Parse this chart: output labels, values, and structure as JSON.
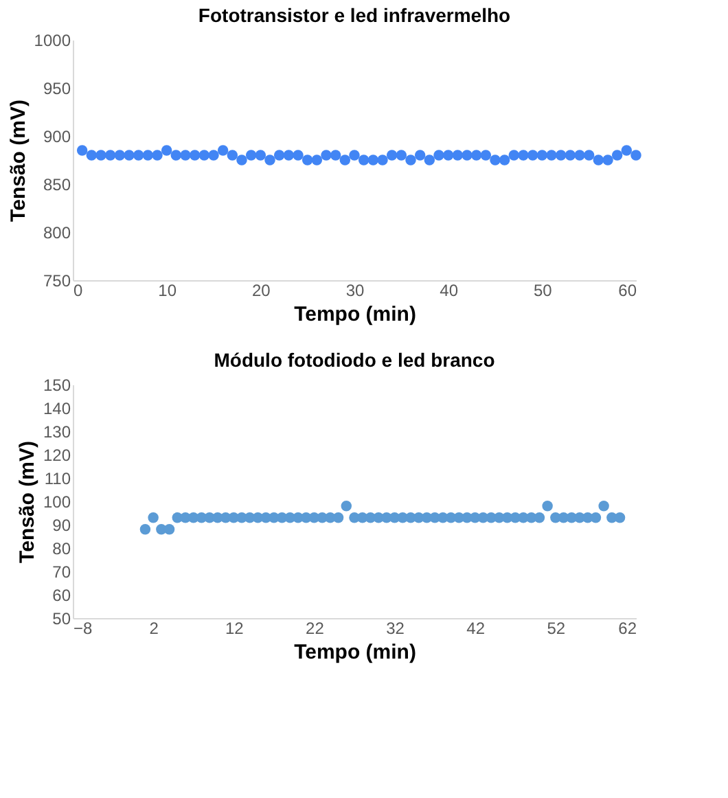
{
  "chart_data": [
    {
      "type": "scatter",
      "title": "Fototransistor e led infravermelho",
      "xlabel": "Tempo (min)",
      "ylabel": "Tensão (mV)",
      "x": [
        1,
        2,
        3,
        4,
        5,
        6,
        7,
        8,
        9,
        10,
        11,
        12,
        13,
        14,
        15,
        16,
        17,
        18,
        19,
        20,
        21,
        22,
        23,
        24,
        25,
        26,
        27,
        28,
        29,
        30,
        31,
        32,
        33,
        34,
        35,
        36,
        37,
        38,
        39,
        40,
        41,
        42,
        43,
        44,
        45,
        46,
        47,
        48,
        49,
        50,
        51,
        52,
        53,
        54,
        55,
        56,
        57,
        58,
        59,
        60
      ],
      "series": [
        {
          "color": "#4285f4",
          "values": [
            885,
            880,
            880,
            880,
            880,
            880,
            880,
            880,
            880,
            885,
            880,
            880,
            880,
            880,
            880,
            885,
            880,
            875,
            880,
            880,
            875,
            880,
            880,
            880,
            875,
            875,
            880,
            880,
            875,
            880,
            875,
            875,
            875,
            880,
            880,
            875,
            880,
            875,
            880,
            880,
            880,
            880,
            880,
            880,
            875,
            875,
            880,
            880,
            880,
            880,
            880,
            880,
            880,
            880,
            880,
            875,
            875,
            880,
            885,
            880
          ]
        }
      ],
      "xlim": [
        0,
        60
      ],
      "xticks": [
        0,
        10,
        20,
        30,
        40,
        50,
        60
      ],
      "ylim": [
        750,
        1000
      ],
      "yticks": [
        750,
        800,
        850,
        900,
        950,
        1000
      ],
      "grid": false,
      "marker": "circle"
    },
    {
      "type": "scatter",
      "title": "Módulo fotodiodo e led branco",
      "xlabel": "Tempo (min)",
      "ylabel": "Tensão (mV)",
      "x": [
        1,
        2,
        3,
        4,
        5,
        6,
        7,
        8,
        9,
        10,
        11,
        12,
        13,
        14,
        15,
        16,
        17,
        18,
        19,
        20,
        21,
        22,
        23,
        24,
        25,
        26,
        27,
        28,
        29,
        30,
        31,
        32,
        33,
        34,
        35,
        36,
        37,
        38,
        39,
        40,
        41,
        42,
        43,
        44,
        45,
        46,
        47,
        48,
        49,
        50,
        51,
        52,
        53,
        54,
        55,
        56,
        57,
        58,
        59,
        60
      ],
      "series": [
        {
          "color": "#5b9bd5",
          "values": [
            88,
            93,
            88,
            88,
            93,
            93,
            93,
            93,
            93,
            93,
            93,
            93,
            93,
            93,
            93,
            93,
            93,
            93,
            93,
            93,
            93,
            93,
            93,
            93,
            93,
            98,
            93,
            93,
            93,
            93,
            93,
            93,
            93,
            93,
            93,
            93,
            93,
            93,
            93,
            93,
            93,
            93,
            93,
            93,
            93,
            93,
            93,
            93,
            93,
            93,
            98,
            93,
            93,
            93,
            93,
            93,
            93,
            98,
            93,
            93
          ]
        }
      ],
      "xlim": [
        -8,
        62
      ],
      "xticks": [
        -8,
        2,
        12,
        22,
        32,
        42,
        52,
        62
      ],
      "ylim": [
        50,
        150
      ],
      "yticks": [
        50,
        60,
        70,
        80,
        90,
        100,
        110,
        120,
        130,
        140,
        150
      ],
      "grid": false,
      "marker": "circle"
    }
  ]
}
